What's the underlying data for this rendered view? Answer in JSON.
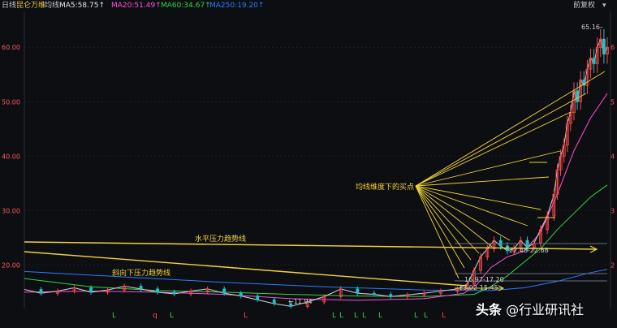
{
  "header": {
    "period_label": "日线",
    "stock_name": "昆仑万维",
    "ma_label": "均线",
    "ma5": "MA5:58.75↑",
    "ma20": "MA20:51.49↑",
    "ma60": "MA60:34.67↑",
    "ma250": "MA250:19.20↑",
    "adjust_label": "前复权",
    "colors": {
      "ma5": "#e6e6e6",
      "ma20": "#ff4fd8",
      "ma60": "#34d34a",
      "ma250": "#2c7bff",
      "price": "#c9c9c9"
    }
  },
  "chart_data": {
    "type": "line",
    "title": "",
    "y_ticks_left": [
      "60.00",
      "50.00",
      "40.00",
      "30.00",
      "20.00"
    ],
    "y_ticks_right": [
      "6",
      "5",
      "4",
      "3",
      "2"
    ],
    "ylim": [
      12,
      66
    ],
    "x_unit": "trading days",
    "xlim": [
      0,
      175
    ],
    "annotations": {
      "buy_point": "均线维度下的买点",
      "horizontal_resistance": "水平压力趋势线",
      "descending_resistance": "斜向下压力趋势线",
      "zone_1": "16.97-17.20",
      "zone_2": "13.02-15.45",
      "zone_3": "22.48-22.68",
      "low_price": "←11.94",
      "high_price": "65.16–"
    },
    "series": [
      {
        "name": "MA250",
        "color": "#2c7bff",
        "x": [
          0,
          30,
          60,
          90,
          120,
          140,
          150,
          160,
          170,
          175
        ],
        "y": [
          18.8,
          17.8,
          16.8,
          16.0,
          15.4,
          15.3,
          15.8,
          17.0,
          18.6,
          19.2
        ]
      },
      {
        "name": "MA60",
        "color": "#34d34a",
        "x": [
          0,
          20,
          40,
          60,
          80,
          100,
          120,
          135,
          140,
          145,
          150,
          155,
          160,
          165,
          170,
          175
        ],
        "y": [
          17.5,
          16.0,
          15.3,
          15.0,
          14.6,
          14.3,
          14.2,
          14.6,
          16.0,
          18.0,
          20.5,
          23.0,
          26.5,
          29.5,
          32.5,
          34.7
        ]
      },
      {
        "name": "MA20",
        "color": "#ff4fd8",
        "x": [
          0,
          20,
          40,
          60,
          80,
          100,
          120,
          132,
          136,
          140,
          145,
          150,
          155,
          160,
          165,
          170,
          175
        ],
        "y": [
          15.0,
          15.2,
          15.0,
          14.6,
          13.8,
          13.5,
          13.8,
          14.8,
          16.5,
          19.5,
          21.5,
          22.5,
          26,
          33,
          41,
          47,
          51.5
        ]
      },
      {
        "name": "Close",
        "color": "#c9c9c9",
        "x": [
          0,
          5,
          10,
          15,
          20,
          25,
          30,
          35,
          40,
          45,
          50,
          55,
          60,
          65,
          70,
          75,
          80,
          85,
          90,
          95,
          100,
          105,
          110,
          115,
          120,
          125,
          130,
          133,
          135,
          137,
          139,
          141,
          143,
          145,
          147,
          149,
          151,
          153,
          155,
          157,
          159,
          160,
          161,
          162,
          163,
          164,
          165,
          166,
          167,
          168,
          169,
          170,
          171,
          172,
          173,
          174,
          175
        ],
        "y": [
          15.5,
          14.8,
          15.2,
          15.8,
          15.0,
          15.4,
          16.1,
          15.6,
          15.0,
          14.7,
          15.2,
          15.6,
          14.8,
          14.3,
          13.6,
          12.9,
          12.4,
          13.2,
          14.2,
          15.6,
          14.8,
          14.6,
          14.2,
          14.5,
          14.8,
          15.2,
          15.6,
          16.5,
          19.0,
          21.5,
          23.0,
          24.5,
          23.5,
          22.6,
          23.0,
          24.5,
          23.2,
          24.0,
          26.5,
          29.0,
          33.0,
          37.5,
          40.0,
          42.0,
          46.0,
          48.0,
          52.0,
          50.0,
          54.0,
          53.0,
          56.0,
          58.0,
          57.0,
          60.0,
          61.5,
          58.75,
          60.0
        ]
      }
    ]
  },
  "watermark": {
    "brand": "头条",
    "text": "@行业研讯社"
  }
}
